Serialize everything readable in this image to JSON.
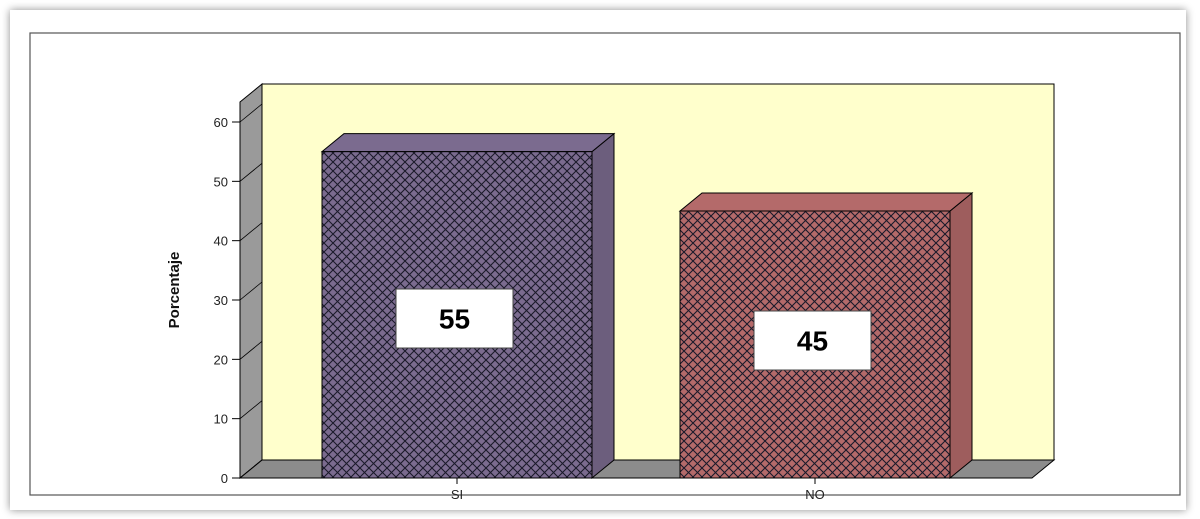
{
  "chart_data": {
    "type": "bar",
    "categories": [
      "SI",
      "NO"
    ],
    "values": [
      55,
      45
    ],
    "data_labels": [
      "55",
      "45"
    ],
    "title": "",
    "xlabel": "",
    "ylabel": "Porcentaje",
    "ylim": [
      0,
      60
    ],
    "yticks": [
      "0",
      "10",
      "20",
      "30",
      "40",
      "50",
      "60"
    ],
    "grid": false,
    "legend": "none",
    "colors": {
      "background_panel": "#ffffcc",
      "wall_side": "#9a9a9a",
      "floor": "#8c8c8c",
      "bars": [
        "#7b6b8f",
        "#b46a6a"
      ],
      "hatch": "#1a1a2a"
    }
  }
}
